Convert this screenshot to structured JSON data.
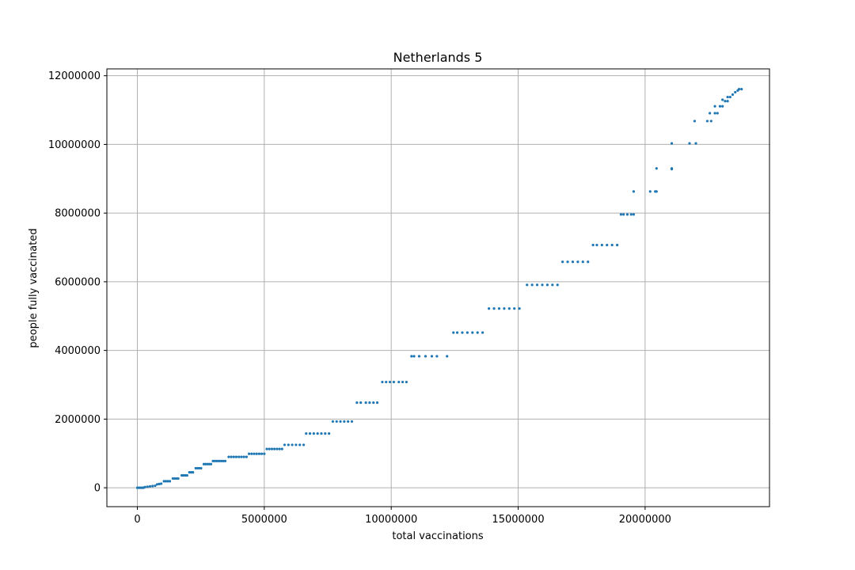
{
  "chart_data": {
    "type": "scatter",
    "title": "Netherlands 5",
    "xlabel": "total vaccinations",
    "ylabel": "people fully vaccinated",
    "xlim": [
      -1200000,
      24900000
    ],
    "ylim": [
      -550000,
      12200000
    ],
    "grid": true,
    "xticks": [
      0,
      5000000,
      10000000,
      15000000,
      20000000
    ],
    "xtick_labels": [
      "0",
      "5000000",
      "10000000",
      "15000000",
      "20000000"
    ],
    "yticks": [
      0,
      2000000,
      4000000,
      6000000,
      8000000,
      10000000,
      12000000
    ],
    "ytick_labels": [
      "0",
      "2000000",
      "4000000",
      "6000000",
      "8000000",
      "10000000",
      "12000000"
    ],
    "marker_color": "#1f77b4",
    "points": [
      [
        0,
        0
      ],
      [
        60000,
        0
      ],
      [
        120000,
        0
      ],
      [
        180000,
        0
      ],
      [
        240000,
        0
      ],
      [
        300000,
        20000
      ],
      [
        400000,
        30000
      ],
      [
        500000,
        40000
      ],
      [
        600000,
        50000
      ],
      [
        700000,
        60000
      ],
      [
        780000,
        100000
      ],
      [
        860000,
        110000
      ],
      [
        940000,
        120000
      ],
      [
        1050000,
        190000
      ],
      [
        1120000,
        190000
      ],
      [
        1200000,
        190000
      ],
      [
        1280000,
        190000
      ],
      [
        1400000,
        270000
      ],
      [
        1470000,
        270000
      ],
      [
        1540000,
        270000
      ],
      [
        1610000,
        270000
      ],
      [
        1750000,
        360000
      ],
      [
        1820000,
        360000
      ],
      [
        1890000,
        360000
      ],
      [
        1960000,
        360000
      ],
      [
        2050000,
        450000
      ],
      [
        2120000,
        450000
      ],
      [
        2190000,
        450000
      ],
      [
        2300000,
        570000
      ],
      [
        2370000,
        570000
      ],
      [
        2440000,
        570000
      ],
      [
        2510000,
        570000
      ],
      [
        2620000,
        690000
      ],
      [
        2690000,
        690000
      ],
      [
        2760000,
        690000
      ],
      [
        2830000,
        690000
      ],
      [
        2900000,
        690000
      ],
      [
        2980000,
        780000
      ],
      [
        3060000,
        780000
      ],
      [
        3140000,
        780000
      ],
      [
        3220000,
        780000
      ],
      [
        3300000,
        780000
      ],
      [
        3380000,
        780000
      ],
      [
        3460000,
        780000
      ],
      [
        3600000,
        900000
      ],
      [
        3700000,
        900000
      ],
      [
        3800000,
        900000
      ],
      [
        3900000,
        900000
      ],
      [
        4000000,
        900000
      ],
      [
        4100000,
        900000
      ],
      [
        4200000,
        900000
      ],
      [
        4300000,
        900000
      ],
      [
        4400000,
        990000
      ],
      [
        4500000,
        990000
      ],
      [
        4600000,
        990000
      ],
      [
        4700000,
        990000
      ],
      [
        4800000,
        990000
      ],
      [
        4900000,
        990000
      ],
      [
        5000000,
        990000
      ],
      [
        5100000,
        1130000
      ],
      [
        5200000,
        1130000
      ],
      [
        5300000,
        1130000
      ],
      [
        5400000,
        1130000
      ],
      [
        5500000,
        1130000
      ],
      [
        5600000,
        1130000
      ],
      [
        5700000,
        1130000
      ],
      [
        5800000,
        1250000
      ],
      [
        5950000,
        1250000
      ],
      [
        6100000,
        1250000
      ],
      [
        6250000,
        1250000
      ],
      [
        6400000,
        1250000
      ],
      [
        6550000,
        1250000
      ],
      [
        6650000,
        1580000
      ],
      [
        6800000,
        1580000
      ],
      [
        6950000,
        1580000
      ],
      [
        7100000,
        1580000
      ],
      [
        7250000,
        1580000
      ],
      [
        7400000,
        1580000
      ],
      [
        7550000,
        1580000
      ],
      [
        7700000,
        1930000
      ],
      [
        7850000,
        1930000
      ],
      [
        8000000,
        1930000
      ],
      [
        8150000,
        1930000
      ],
      [
        8300000,
        1930000
      ],
      [
        8450000,
        1930000
      ],
      [
        8650000,
        2480000
      ],
      [
        8800000,
        2480000
      ],
      [
        9000000,
        2480000
      ],
      [
        9150000,
        2480000
      ],
      [
        9300000,
        2480000
      ],
      [
        9450000,
        2480000
      ],
      [
        9650000,
        3080000
      ],
      [
        9800000,
        3080000
      ],
      [
        9950000,
        3080000
      ],
      [
        10100000,
        3080000
      ],
      [
        10300000,
        3080000
      ],
      [
        10450000,
        3080000
      ],
      [
        10600000,
        3080000
      ],
      [
        10800000,
        3830000
      ],
      [
        10900000,
        3830000
      ],
      [
        11100000,
        3830000
      ],
      [
        11350000,
        3830000
      ],
      [
        11600000,
        3830000
      ],
      [
        11800000,
        3830000
      ],
      [
        12200000,
        3830000
      ],
      [
        12450000,
        4520000
      ],
      [
        12600000,
        4520000
      ],
      [
        12800000,
        4520000
      ],
      [
        13000000,
        4520000
      ],
      [
        13200000,
        4520000
      ],
      [
        13400000,
        4520000
      ],
      [
        13600000,
        4520000
      ],
      [
        13850000,
        5220000
      ],
      [
        14050000,
        5220000
      ],
      [
        14250000,
        5220000
      ],
      [
        14450000,
        5220000
      ],
      [
        14650000,
        5220000
      ],
      [
        14850000,
        5220000
      ],
      [
        15050000,
        5220000
      ],
      [
        15350000,
        5910000
      ],
      [
        15550000,
        5910000
      ],
      [
        15750000,
        5910000
      ],
      [
        15950000,
        5910000
      ],
      [
        16150000,
        5910000
      ],
      [
        16350000,
        5910000
      ],
      [
        16550000,
        5910000
      ],
      [
        16750000,
        6580000
      ],
      [
        16950000,
        6580000
      ],
      [
        17150000,
        6580000
      ],
      [
        17350000,
        6580000
      ],
      [
        17550000,
        6580000
      ],
      [
        17750000,
        6580000
      ],
      [
        17950000,
        7070000
      ],
      [
        18100000,
        7070000
      ],
      [
        18300000,
        7070000
      ],
      [
        18500000,
        7070000
      ],
      [
        18700000,
        7070000
      ],
      [
        18900000,
        7070000
      ],
      [
        19050000,
        7960000
      ],
      [
        19150000,
        7960000
      ],
      [
        19300000,
        7960000
      ],
      [
        19450000,
        7960000
      ],
      [
        19550000,
        7960000
      ],
      [
        19550000,
        8630000
      ],
      [
        20200000,
        8630000
      ],
      [
        20400000,
        8630000
      ],
      [
        20450000,
        8630000
      ],
      [
        20450000,
        9300000
      ],
      [
        21050000,
        9300000
      ],
      [
        21050000,
        9280000
      ],
      [
        21050000,
        10030000
      ],
      [
        21750000,
        10030000
      ],
      [
        22000000,
        10030000
      ],
      [
        21950000,
        10680000
      ],
      [
        22450000,
        10680000
      ],
      [
        22600000,
        10680000
      ],
      [
        22550000,
        10910000
      ],
      [
        22750000,
        10910000
      ],
      [
        22850000,
        10910000
      ],
      [
        22750000,
        11110000
      ],
      [
        22950000,
        11110000
      ],
      [
        23050000,
        11110000
      ],
      [
        23050000,
        11300000
      ],
      [
        23150000,
        11260000
      ],
      [
        23250000,
        11260000
      ],
      [
        23250000,
        11380000
      ],
      [
        23350000,
        11380000
      ],
      [
        23450000,
        11450000
      ],
      [
        23550000,
        11520000
      ],
      [
        23650000,
        11570000
      ],
      [
        23700000,
        11610000
      ],
      [
        23800000,
        11610000
      ]
    ]
  }
}
